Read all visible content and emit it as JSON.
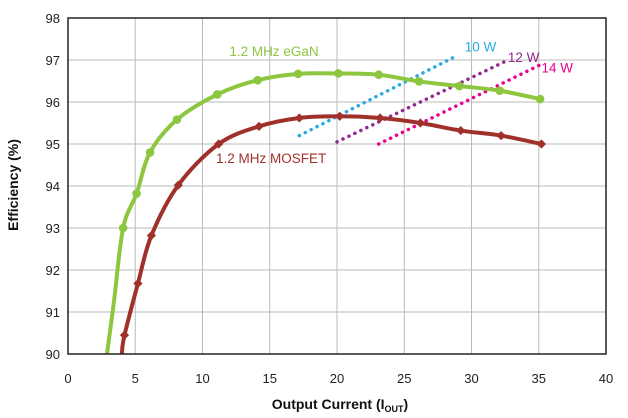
{
  "chart_data": {
    "type": "line",
    "xlabel_main": "Output Current (I",
    "xlabel_sub": "OUT",
    "xlabel_tail": ")",
    "ylabel": "Efficiency (%)",
    "xlim": [
      0,
      40
    ],
    "ylim": [
      90,
      98
    ],
    "xticks": [
      "0",
      "5",
      "10",
      "15",
      "20",
      "25",
      "30",
      "35",
      "40"
    ],
    "yticks": [
      "90",
      "91",
      "92",
      "93",
      "94",
      "95",
      "96",
      "97",
      "98"
    ],
    "grid": true,
    "colors": {
      "egan": "#8dc63f",
      "mosfet": "#a0312a",
      "w10": "#27aae1",
      "w12": "#92278f",
      "w14": "#ec008c",
      "grid": "#bbbbbb",
      "axis": "#222222"
    },
    "series": [
      {
        "name": "1.2 MHz eGaN",
        "key": "egan",
        "marker": "circle",
        "curve": [
          [
            2.9,
            90.0
          ],
          [
            3.4,
            91.2
          ],
          [
            4.1,
            93.0
          ],
          [
            5.1,
            93.82
          ],
          [
            6.1,
            94.8
          ],
          [
            8.1,
            95.58
          ],
          [
            11.1,
            96.18
          ],
          [
            14.1,
            96.52
          ],
          [
            17.1,
            96.67
          ],
          [
            20.1,
            96.68
          ],
          [
            23.1,
            96.65
          ],
          [
            26.1,
            96.49
          ],
          [
            29.1,
            96.38
          ],
          [
            32.1,
            96.27
          ],
          [
            35.1,
            96.07
          ]
        ],
        "points": [
          [
            4.1,
            93.0
          ],
          [
            5.1,
            93.82
          ],
          [
            6.1,
            94.8
          ],
          [
            8.1,
            95.58
          ],
          [
            11.1,
            96.18
          ],
          [
            14.1,
            96.52
          ],
          [
            17.1,
            96.67
          ],
          [
            20.1,
            96.68
          ],
          [
            23.1,
            96.65
          ],
          [
            26.1,
            96.49
          ],
          [
            29.1,
            96.38
          ],
          [
            32.1,
            96.27
          ],
          [
            35.1,
            96.07
          ]
        ],
        "label_at": [
          12,
          97.1
        ]
      },
      {
        "name": "1.2 MHz MOSFET",
        "key": "mosfet",
        "marker": "diamond",
        "curve": [
          [
            4.0,
            90.0
          ],
          [
            4.2,
            90.45
          ],
          [
            5.2,
            91.68
          ],
          [
            6.2,
            92.82
          ],
          [
            8.2,
            94.02
          ],
          [
            11.2,
            95.0
          ],
          [
            14.2,
            95.42
          ],
          [
            17.2,
            95.62
          ],
          [
            20.2,
            95.66
          ],
          [
            23.2,
            95.62
          ],
          [
            26.2,
            95.5
          ],
          [
            29.2,
            95.32
          ],
          [
            32.2,
            95.2
          ],
          [
            35.2,
            95.0
          ]
        ],
        "points": [
          [
            4.2,
            90.45
          ],
          [
            5.2,
            91.68
          ],
          [
            6.2,
            92.82
          ],
          [
            8.2,
            94.02
          ],
          [
            11.2,
            95.0
          ],
          [
            14.2,
            95.42
          ],
          [
            17.2,
            95.62
          ],
          [
            20.2,
            95.66
          ],
          [
            23.2,
            95.62
          ],
          [
            26.2,
            95.5
          ],
          [
            29.2,
            95.32
          ],
          [
            32.2,
            95.2
          ],
          [
            35.2,
            95.0
          ]
        ],
        "label_at": [
          11,
          94.55
        ]
      }
    ],
    "power_lines": [
      {
        "name": "10 W",
        "key": "w10",
        "from": [
          17.2,
          95.2
        ],
        "to": [
          28.9,
          97.1
        ],
        "label_at": [
          29.5,
          97.2
        ]
      },
      {
        "name": "12 W",
        "key": "w12",
        "from": [
          20.0,
          95.05
        ],
        "to": [
          32.6,
          96.98
        ],
        "label_at": [
          32.7,
          96.95
        ]
      },
      {
        "name": "14 W",
        "key": "w14",
        "from": [
          23.1,
          95.0
        ],
        "to": [
          35.2,
          96.9
        ],
        "label_at": [
          35.2,
          96.7
        ]
      }
    ]
  }
}
